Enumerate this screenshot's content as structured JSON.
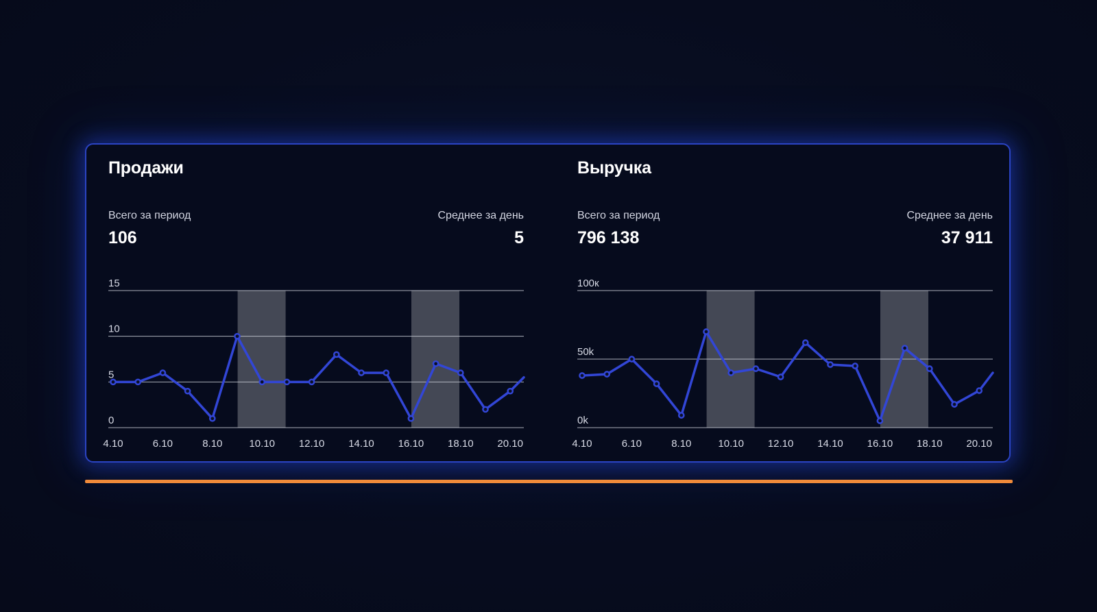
{
  "colors": {
    "background": "#070c1e",
    "panel_border": "#2b44c4",
    "line": "#3246d6",
    "accent_line": "#f08a3a",
    "highlight_band": "#6a6d78",
    "grid": "#c9ccd6"
  },
  "charts": [
    {
      "title": "Продажи",
      "total_label": "Всего за период",
      "total_value": "106",
      "avg_label": "Среднее за день",
      "avg_value": "5"
    },
    {
      "title": "Выручка",
      "total_label": "Всего за период",
      "total_value": "796 138",
      "avg_label": "Среднее за день",
      "avg_value": "37 911"
    }
  ],
  "chart_data": [
    {
      "type": "line",
      "title": "Продажи",
      "x_ticks": [
        "4.10",
        "6.10",
        "8.10",
        "10.10",
        "12.10",
        "14.10",
        "16.10",
        "18.10",
        "20.10"
      ],
      "x": [
        "4.10",
        "5.10",
        "6.10",
        "7.10",
        "8.10",
        "9.10",
        "10.10",
        "11.10",
        "12.10",
        "13.10",
        "14.10",
        "15.10",
        "16.10",
        "17.10",
        "18.10",
        "19.10",
        "20.10",
        "21.10"
      ],
      "values": [
        5,
        5,
        6,
        4,
        1,
        10,
        5,
        5,
        5,
        8,
        6,
        6,
        1,
        7,
        6,
        2,
        4,
        5.5
      ],
      "y_ticks": [
        "0",
        "5",
        "10",
        "15"
      ],
      "ylim": [
        0,
        15
      ],
      "highlight_bands": [
        [
          "9.10",
          "10.10"
        ],
        [
          "16.10",
          "17.10"
        ]
      ],
      "grid": true
    },
    {
      "type": "line",
      "title": "Выручка",
      "x_ticks": [
        "4.10",
        "6.10",
        "8.10",
        "10.10",
        "12.10",
        "14.10",
        "16.10",
        "18.10",
        "20.10"
      ],
      "x": [
        "4.10",
        "5.10",
        "6.10",
        "7.10",
        "8.10",
        "9.10",
        "10.10",
        "11.10",
        "12.10",
        "13.10",
        "14.10",
        "15.10",
        "16.10",
        "17.10",
        "18.10",
        "19.10",
        "20.10",
        "21.10"
      ],
      "values": [
        38000,
        39000,
        50000,
        32000,
        9000,
        70000,
        40000,
        43000,
        37000,
        62000,
        46000,
        45000,
        5000,
        58000,
        43000,
        17000,
        27000,
        40000
      ],
      "y_ticks": [
        "0k",
        "50k",
        "100к"
      ],
      "ylim": [
        0,
        100000
      ],
      "highlight_bands": [
        [
          "9.10",
          "10.10"
        ],
        [
          "16.10",
          "17.10"
        ]
      ],
      "grid": true
    }
  ]
}
